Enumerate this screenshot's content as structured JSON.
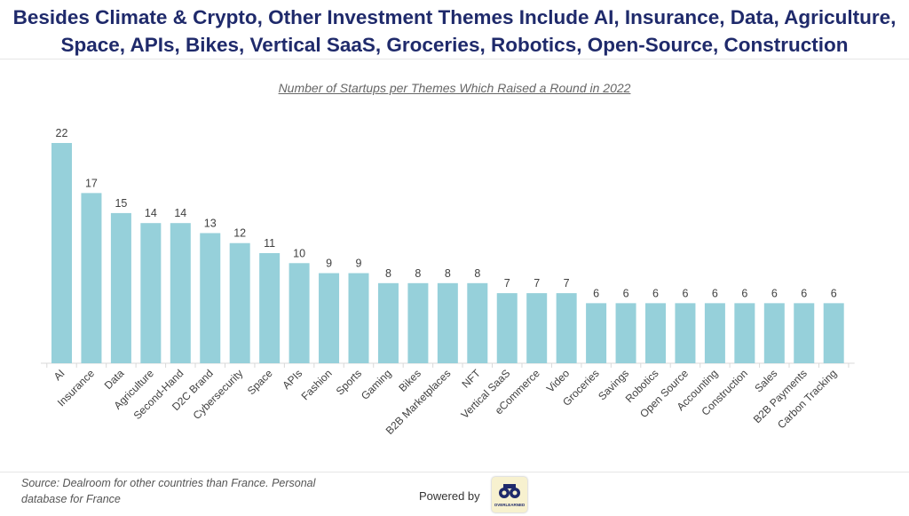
{
  "header": {
    "title_line1": "Besides Climate & Crypto, Other Investment Themes Include AI, Insurance, Data, Agriculture,",
    "title_line2": "Space, APIs, Bikes, Vertical SaaS, Groceries, Robotics, Open-Source, Construction"
  },
  "chart_data": {
    "type": "bar",
    "title": "Number of Startups per Themes Which Raised a Round in 2022",
    "xlabel": "",
    "ylabel": "",
    "categories": [
      "AI",
      "Insurance",
      "Data",
      "Agriculture",
      "Second-Hand",
      "D2C Brand",
      "Cybersecurity",
      "Space",
      "APIs",
      "Fashion",
      "Sports",
      "Gaming",
      "Bikes",
      "B2B Marketplaces",
      "NFT",
      "Vertical SaaS",
      "eCommerce",
      "Video",
      "Groceries",
      "Savings",
      "Robotics",
      "Open Source",
      "Accounting",
      "Construction",
      "Sales",
      "B2B Payments",
      "Carbon Tracking"
    ],
    "values": [
      22,
      17,
      15,
      14,
      14,
      13,
      12,
      11,
      10,
      9,
      9,
      8,
      8,
      8,
      8,
      7,
      7,
      7,
      6,
      6,
      6,
      6,
      6,
      6,
      6,
      6,
      6
    ],
    "ylim": [
      0,
      22
    ],
    "grid": false,
    "bar_color": "#96d0da"
  },
  "footer": {
    "source": "Source: Dealroom for other countries than France. Personal database for France",
    "powered_by": "Powered by",
    "logo_text": "OVERLEARNED"
  },
  "colors": {
    "title": "#1f2a6b",
    "bar": "#96d0da",
    "axis": "#d9d9d9"
  }
}
